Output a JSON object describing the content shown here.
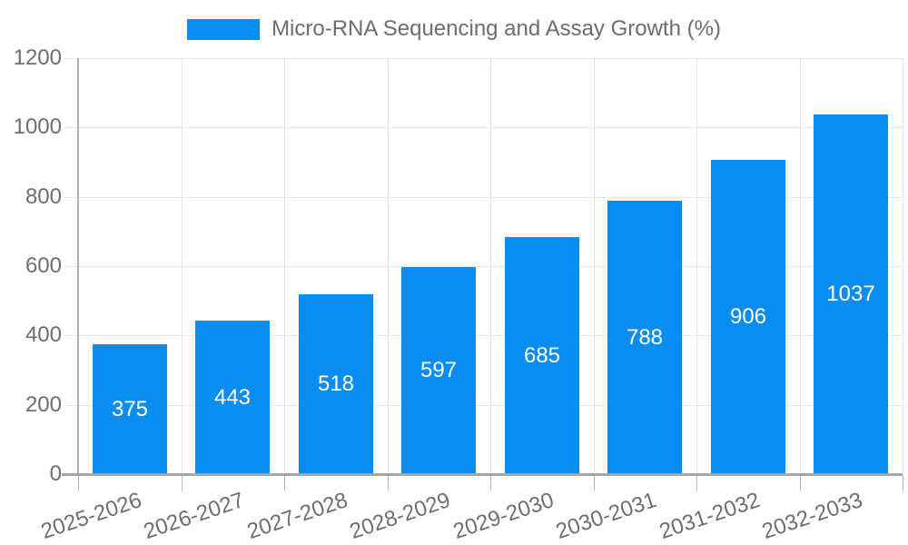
{
  "legend": {
    "label": "Micro-RNA Sequencing and Assay Growth (%)",
    "swatch_color": "#0a8df0"
  },
  "chart_data": {
    "type": "bar",
    "title": "Micro-RNA Sequencing and Assay Growth (%)",
    "series_name": "Micro-RNA Sequencing and Assay Growth (%)",
    "categories": [
      "2025-2026",
      "2026-2027",
      "2027-2028",
      "2028-2029",
      "2029-2030",
      "2030-2031",
      "2031-2032",
      "2032-2033"
    ],
    "values": [
      375,
      443,
      518,
      597,
      685,
      788,
      906,
      1037
    ],
    "xlabel": "",
    "ylabel": "",
    "ylim": [
      0,
      1200
    ],
    "ytick_step": 200,
    "yticks": [
      0,
      200,
      400,
      600,
      800,
      1000,
      1200
    ],
    "grid": true,
    "legend_position": "top",
    "value_labels": "inside-center",
    "colors": {
      "bar": "#0a8df0",
      "gridline": "#e6e6e6",
      "axis_line": "#b0b0b0",
      "baseline": "#a6a6a6",
      "tick": "#b9b9b9",
      "axis_text": "#6e6e6e",
      "value_text": "#ffffff"
    }
  }
}
